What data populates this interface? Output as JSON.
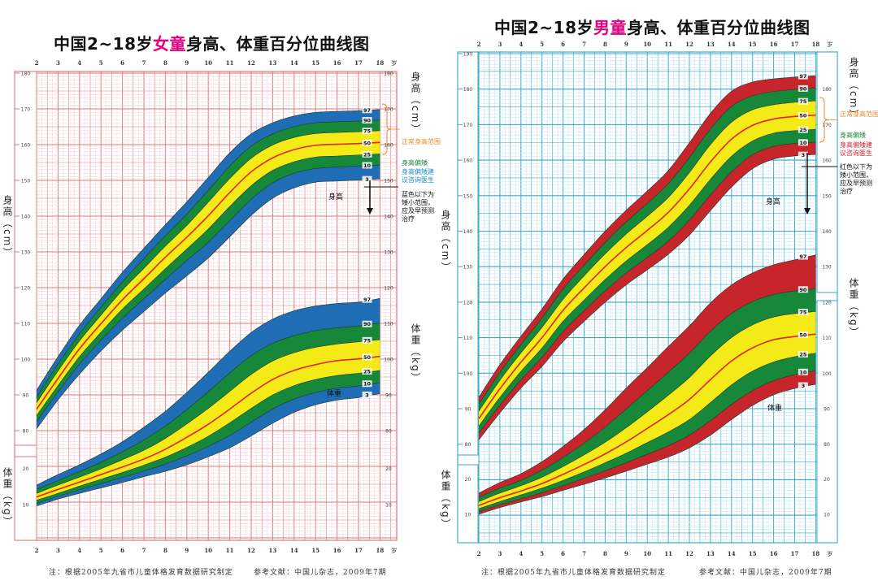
{
  "charts_meta": [
    {
      "title": {
        "prefix": "中国2~18岁",
        "highlight": "女童",
        "suffix": "身高、体重百分位曲线图"
      },
      "height_axis_label": "身高（cm）",
      "weight_axis_label": "体重（kg）",
      "height_curve_label": "身高",
      "weight_curve_label": "体重",
      "notes": {
        "normal": "正常身高范围",
        "short": "身高偏矮",
        "consult": "身高偏矮建议咨询医生",
        "below": "蓝色以下为矮小范围，应及早预测治疗"
      },
      "footnote_left": "注：根据2005年九省市儿童体格发育数据研究制定",
      "footnote_right": "参考文献：中国儿杂志，2009年7期",
      "colors": {
        "outer_band": "#1f6db4",
        "middle_band": "#17873a",
        "inner_band": "#f4ea18",
        "median_line": "#e0251b",
        "grid": "#e3777c",
        "grid_minor": "#f6d2d4",
        "note_consult": "#1a8fc9"
      }
    },
    {
      "title": {
        "prefix": "中国2~18岁",
        "highlight": "男童",
        "suffix": "身高、体重百分位曲线图"
      },
      "height_axis_label": "身高（cm）",
      "weight_axis_label": "体重（kg）",
      "height_curve_label": "身高",
      "weight_curve_label": "体重",
      "notes": {
        "normal": "正常身高范围",
        "short": "身高偏矮",
        "consult": "身高偏矮建议咨询医生",
        "below": "红色以下为矮小范围，应及早预测治疗"
      },
      "footnote_left": "注：根据2005年九省市儿童体格发育数据研究制定",
      "footnote_right": "参考文献：中国儿杂志，2009年7期",
      "colors": {
        "outer_band": "#c6262b",
        "middle_band": "#17873a",
        "inner_band": "#f4ea18",
        "median_line": "#e0251b",
        "grid": "#35a9d3",
        "grid_minor": "#bfe5f2",
        "note_consult": "#d0262c"
      }
    }
  ],
  "chart_data": [
    {
      "type": "area",
      "title": "中国2~18岁女童身高、体重百分位曲线图",
      "x": [
        2,
        3,
        4,
        5,
        6,
        7,
        8,
        9,
        10,
        11,
        12,
        13,
        14,
        15,
        16,
        17,
        18
      ],
      "x_unit": "岁",
      "height_ylim": [
        80,
        180
      ],
      "height_ticks": [
        80,
        90,
        100,
        110,
        120,
        130,
        140,
        150,
        160,
        170,
        180
      ],
      "weight_ticks": [
        10,
        20
      ],
      "percentile_labels": [
        "97",
        "90",
        "75",
        "50",
        "25",
        "10",
        "3"
      ],
      "grid": true,
      "height_series": [
        {
          "name": "3",
          "values": [
            80.5,
            88.6,
            95.8,
            102.3,
            108.1,
            113.3,
            118.5,
            123.3,
            128.3,
            134.2,
            140.2,
            145.0,
            147.9,
            149.5,
            149.8,
            150.1,
            150.4
          ]
        },
        {
          "name": "10",
          "values": [
            82.5,
            90.8,
            98.6,
            105.3,
            111.4,
            116.9,
            122.3,
            127.6,
            132.7,
            138.7,
            144.7,
            149.3,
            152.0,
            153.3,
            153.7,
            154.0,
            154.3
          ]
        },
        {
          "name": "25",
          "values": [
            84.2,
            92.6,
            100.7,
            107.5,
            114.0,
            119.6,
            125.3,
            130.8,
            136.4,
            142.7,
            148.5,
            152.8,
            155.2,
            156.5,
            156.8,
            157.1,
            157.4
          ]
        },
        {
          "name": "50",
          "values": [
            86.0,
            94.6,
            102.9,
            109.9,
            116.6,
            122.5,
            128.5,
            134.1,
            140.1,
            146.6,
            152.4,
            156.3,
            158.6,
            159.8,
            160.1,
            160.3,
            160.6
          ]
        },
        {
          "name": "75",
          "values": [
            87.8,
            96.7,
            105.1,
            112.3,
            119.3,
            125.4,
            131.6,
            137.4,
            143.9,
            150.5,
            156.2,
            159.9,
            162.0,
            163.1,
            163.4,
            163.6,
            163.9
          ]
        },
        {
          "name": "90",
          "values": [
            89.4,
            98.6,
            107.1,
            114.5,
            121.6,
            128.1,
            134.5,
            140.6,
            147.2,
            154.0,
            159.6,
            163.0,
            165.0,
            166.1,
            166.4,
            166.6,
            166.9
          ]
        },
        {
          "name": "97",
          "values": [
            91.3,
            100.7,
            109.5,
            116.9,
            124.3,
            131.0,
            137.6,
            144.0,
            150.8,
            157.7,
            163.0,
            166.1,
            168.0,
            169.0,
            169.3,
            169.5,
            169.8
          ]
        }
      ],
      "weight_series": [
        {
          "name": "3",
          "values": [
            9.6,
            11.5,
            13.1,
            14.6,
            16.1,
            17.7,
            19.2,
            21.0,
            23.2,
            25.7,
            29.0,
            32.5,
            35.5,
            37.6,
            38.9,
            39.6,
            40.7
          ]
        },
        {
          "name": "10",
          "values": [
            10.3,
            12.3,
            14.1,
            15.8,
            17.5,
            19.3,
            21.2,
            23.5,
            26.1,
            29.1,
            32.8,
            36.4,
            39.2,
            41.0,
            42.2,
            42.8,
            43.7
          ]
        },
        {
          "name": "25",
          "values": [
            11.2,
            13.1,
            15.1,
            17.0,
            18.9,
            20.9,
            23.1,
            25.8,
            28.9,
            32.6,
            36.6,
            40.3,
            42.9,
            44.6,
            45.7,
            46.3,
            47.1
          ]
        },
        {
          "name": "50",
          "values": [
            12.1,
            14.2,
            16.2,
            18.3,
            20.4,
            22.6,
            25.3,
            28.6,
            32.2,
            36.4,
            40.8,
            44.6,
            47.1,
            48.7,
            49.8,
            50.3,
            51.0
          ]
        },
        {
          "name": "75",
          "values": [
            13.1,
            15.4,
            17.6,
            19.9,
            22.4,
            25.0,
            28.3,
            32.3,
            36.6,
            41.3,
            46.0,
            49.7,
            52.0,
            53.5,
            54.4,
            55.0,
            55.6
          ]
        },
        {
          "name": "90",
          "values": [
            14.2,
            16.6,
            19.1,
            21.7,
            24.6,
            27.9,
            31.7,
            36.3,
            41.2,
            46.4,
            51.2,
            54.6,
            56.7,
            58.1,
            58.9,
            59.4,
            60.2
          ]
        },
        {
          "name": "97",
          "values": [
            15.4,
            18.3,
            21.0,
            24.0,
            27.4,
            31.4,
            35.8,
            41.0,
            46.6,
            52.4,
            57.6,
            61.3,
            63.6,
            64.9,
            65.6,
            66.0,
            67.0
          ]
        }
      ]
    },
    {
      "type": "area",
      "title": "中国2~18岁男童身高、体重百分位曲线图",
      "x": [
        2,
        3,
        4,
        5,
        6,
        7,
        8,
        9,
        10,
        11,
        12,
        13,
        14,
        15,
        16,
        17,
        18
      ],
      "x_unit": "岁",
      "height_ylim": [
        80,
        190
      ],
      "height_ticks": [
        80,
        90,
        100,
        110,
        120,
        130,
        140,
        150,
        160,
        170,
        180,
        190
      ],
      "weight_ticks": [
        10,
        20
      ],
      "percentile_labels": [
        "97",
        "90",
        "75",
        "50",
        "25",
        "10",
        "3"
      ],
      "grid": true,
      "height_series": [
        {
          "name": "3",
          "values": [
            81.2,
            88.8,
            95.8,
            101.9,
            108.9,
            114.6,
            120.0,
            124.9,
            129.1,
            133.5,
            138.9,
            145.8,
            152.4,
            157.6,
            160.3,
            161.2,
            161.6
          ]
        },
        {
          "name": "10",
          "values": [
            83.1,
            91.0,
            98.1,
            104.5,
            111.7,
            117.6,
            123.2,
            128.2,
            132.6,
            137.2,
            143.1,
            150.2,
            156.7,
            161.5,
            163.9,
            164.7,
            165.1
          ]
        },
        {
          "name": "25",
          "values": [
            85.1,
            93.2,
            100.5,
            107.1,
            114.6,
            120.6,
            126.4,
            131.6,
            136.2,
            141.1,
            147.3,
            154.6,
            161.1,
            165.4,
            167.6,
            168.3,
            168.7
          ]
        },
        {
          "name": "50",
          "values": [
            87.2,
            95.6,
            103.1,
            110.0,
            117.7,
            124.0,
            130.0,
            135.4,
            140.2,
            145.3,
            151.9,
            159.5,
            165.9,
            169.8,
            171.6,
            172.3,
            172.7
          ]
        },
        {
          "name": "75",
          "values": [
            89.3,
            98.0,
            105.7,
            112.9,
            120.8,
            127.4,
            133.6,
            139.2,
            144.2,
            149.5,
            156.5,
            164.4,
            170.7,
            174.2,
            175.6,
            176.3,
            176.7
          ]
        },
        {
          "name": "90",
          "values": [
            91.3,
            100.2,
            108.1,
            115.5,
            123.7,
            130.4,
            136.8,
            142.6,
            147.8,
            153.4,
            160.7,
            168.8,
            175.1,
            178.1,
            179.3,
            179.9,
            180.3
          ]
        },
        {
          "name": "97",
          "values": [
            93.2,
            102.4,
            110.4,
            118.1,
            126.5,
            133.4,
            140.0,
            145.9,
            151.3,
            157.1,
            164.9,
            173.2,
            179.4,
            182.0,
            182.9,
            183.4,
            183.8
          ]
        }
      ],
      "weight_series": [
        {
          "name": "3",
          "values": [
            10.0,
            11.9,
            13.5,
            15.0,
            16.8,
            18.5,
            20.3,
            22.2,
            24.2,
            26.2,
            28.8,
            32.4,
            36.8,
            40.8,
            43.8,
            45.6,
            46.8
          ]
        },
        {
          "name": "10",
          "values": [
            10.8,
            12.7,
            14.4,
            16.1,
            18.1,
            20.2,
            22.3,
            24.6,
            27.0,
            29.4,
            32.4,
            36.5,
            41.1,
            45.0,
            47.8,
            49.5,
            50.6
          ]
        },
        {
          "name": "25",
          "values": [
            11.6,
            13.6,
            15.5,
            17.4,
            19.6,
            22.0,
            24.6,
            27.3,
            30.3,
            33.3,
            36.8,
            41.6,
            46.6,
            50.5,
            53.1,
            54.6,
            55.6
          ]
        },
        {
          "name": "50",
          "values": [
            12.5,
            14.7,
            16.6,
            18.7,
            21.3,
            24.1,
            27.1,
            30.5,
            34.3,
            38.2,
            42.5,
            48.1,
            53.4,
            57.1,
            59.4,
            60.3,
            61.0
          ]
        },
        {
          "name": "75",
          "values": [
            13.6,
            16.0,
            18.1,
            20.5,
            23.5,
            26.8,
            30.4,
            34.5,
            39.0,
            43.7,
            48.7,
            54.8,
            60.0,
            63.6,
            65.8,
            66.8,
            67.4
          ]
        },
        {
          "name": "90",
          "values": [
            14.8,
            17.4,
            19.6,
            22.5,
            26.1,
            30.1,
            34.7,
            39.8,
            45.0,
            50.2,
            55.6,
            61.8,
            66.8,
            70.2,
            72.2,
            73.2,
            73.8
          ]
        },
        {
          "name": "97",
          "values": [
            16.0,
            19.0,
            21.5,
            24.9,
            29.2,
            34.0,
            39.6,
            45.7,
            51.5,
            57.5,
            63.3,
            69.8,
            74.9,
            78.3,
            80.6,
            82.0,
            83.4
          ]
        }
      ]
    }
  ]
}
